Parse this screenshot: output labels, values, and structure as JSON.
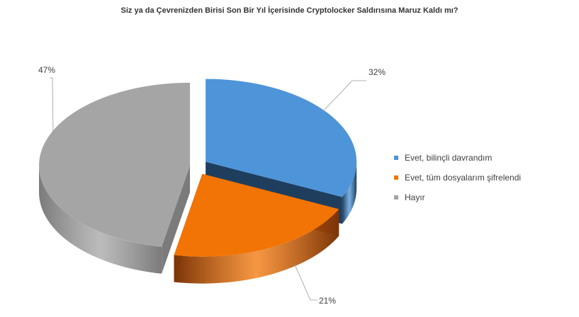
{
  "chart_data": {
    "type": "pie",
    "title": "Siz ya da Çevrenizden Birisi Son Bir Yıl İçerisinde Cryptolocker Saldırısına Maruz Kaldı mı?",
    "categories": [
      "Evet, bilinçli davrandım",
      "Evet, tüm dosyalarım şifrelendi",
      "Hayır"
    ],
    "values": [
      32,
      21,
      47
    ],
    "data_labels": [
      "32%",
      "21%",
      "47%"
    ],
    "colors": [
      "#4E94D8",
      "#F27405",
      "#A5A5A5"
    ],
    "side_colors": [
      "#1F3E5E",
      "#7A3408",
      "#7B7B7B"
    ],
    "legend_position": "right",
    "style": "3d-exploded"
  }
}
